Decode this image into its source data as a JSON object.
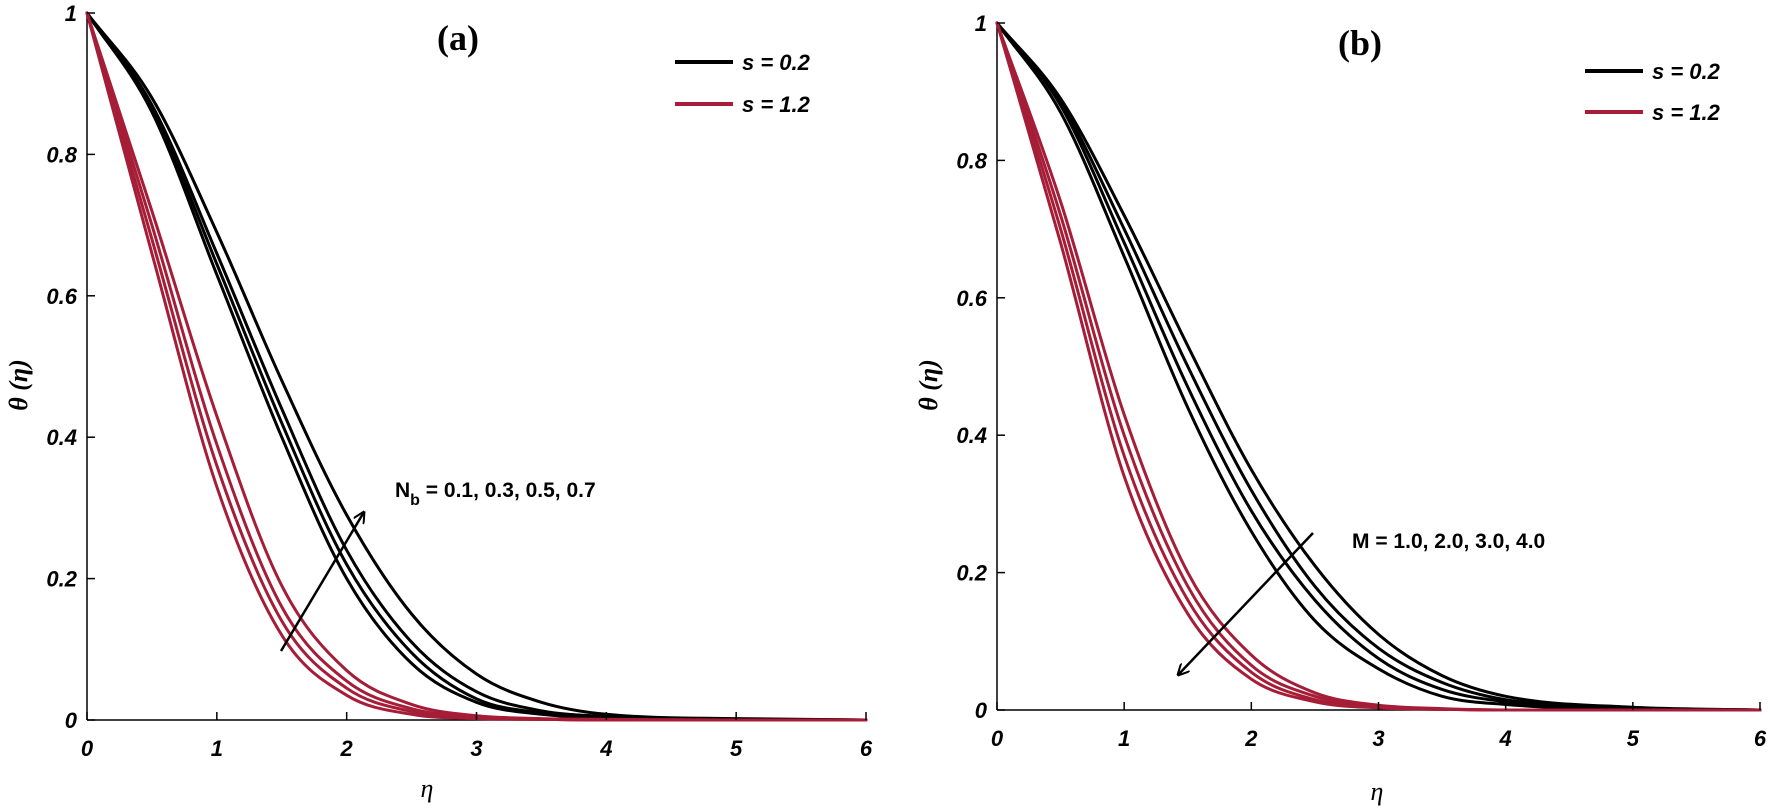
{
  "chart_data": [
    {
      "type": "line",
      "title": "(a)",
      "xlabel": "η",
      "ylabel": "θ (η)",
      "xlim": [
        0,
        6
      ],
      "ylim": [
        0,
        1
      ],
      "xticks": [
        "0",
        "1",
        "2",
        "3",
        "4",
        "5",
        "6"
      ],
      "yticks": [
        "0",
        "0.2",
        "0.4",
        "0.6",
        "0.8",
        "1"
      ],
      "legend_position": "top-right",
      "legend": [
        {
          "name": "s = 0.2",
          "color": "#000000"
        },
        {
          "name": "s = 1.2",
          "color": "#a51d37"
        }
      ],
      "annotation": {
        "text_main": "N",
        "text_sub": "b",
        "text_rest": " = 0.1, 0.3, 0.5, 0.7",
        "arrow_direction": "increasing"
      },
      "series": [
        {
          "legend": "s = 0.2",
          "color": "#000000",
          "x": [
            0,
            0.5,
            1,
            1.5,
            2,
            2.5,
            3,
            3.5,
            4,
            5,
            6
          ],
          "values": [
            1,
            0.86,
            0.63,
            0.4,
            0.2,
            0.08,
            0.025,
            0.008,
            0.003,
            0.001,
            0
          ]
        },
        {
          "legend": "s = 0.2",
          "color": "#000000",
          "x": [
            0,
            0.5,
            1,
            1.5,
            2,
            2.5,
            3,
            3.5,
            4,
            5,
            6
          ],
          "values": [
            1,
            0.865,
            0.645,
            0.42,
            0.22,
            0.095,
            0.03,
            0.01,
            0.004,
            0.001,
            0
          ]
        },
        {
          "legend": "s = 0.2",
          "color": "#000000",
          "x": [
            0,
            0.5,
            1,
            1.5,
            2,
            2.5,
            3,
            3.5,
            4,
            5,
            6
          ],
          "values": [
            1,
            0.87,
            0.66,
            0.44,
            0.24,
            0.11,
            0.04,
            0.013,
            0.005,
            0.001,
            0
          ]
        },
        {
          "legend": "s = 0.2",
          "color": "#000000",
          "x": [
            0,
            0.5,
            1,
            1.5,
            2,
            2.5,
            3,
            3.5,
            4,
            5,
            6
          ],
          "values": [
            1,
            0.88,
            0.69,
            0.48,
            0.29,
            0.15,
            0.065,
            0.025,
            0.008,
            0.002,
            0
          ]
        },
        {
          "legend": "s = 1.2",
          "color": "#a51d37",
          "x": [
            0,
            0.5,
            1,
            1.5,
            2,
            2.5,
            3,
            3.5,
            4,
            5,
            6
          ],
          "values": [
            1,
            0.66,
            0.33,
            0.12,
            0.035,
            0.008,
            0.002,
            0.001,
            0,
            0,
            0
          ]
        },
        {
          "legend": "s = 1.2",
          "color": "#a51d37",
          "x": [
            0,
            0.5,
            1,
            1.5,
            2,
            2.5,
            3,
            3.5,
            4,
            5,
            6
          ],
          "values": [
            1,
            0.68,
            0.36,
            0.14,
            0.045,
            0.012,
            0.003,
            0.001,
            0,
            0,
            0
          ]
        },
        {
          "legend": "s = 1.2",
          "color": "#a51d37",
          "x": [
            0,
            0.5,
            1,
            1.5,
            2,
            2.5,
            3,
            3.5,
            4,
            5,
            6
          ],
          "values": [
            1,
            0.7,
            0.39,
            0.16,
            0.055,
            0.016,
            0.004,
            0.001,
            0,
            0,
            0
          ]
        },
        {
          "legend": "s = 1.2",
          "color": "#a51d37",
          "x": [
            0,
            0.5,
            1,
            1.5,
            2,
            2.5,
            3,
            3.5,
            4,
            5,
            6
          ],
          "values": [
            1,
            0.72,
            0.43,
            0.19,
            0.07,
            0.022,
            0.006,
            0.002,
            0.001,
            0,
            0
          ]
        }
      ]
    },
    {
      "type": "line",
      "title": "(b)",
      "xlabel": "η",
      "ylabel": "θ (η)",
      "xlim": [
        0,
        6
      ],
      "ylim": [
        0,
        1
      ],
      "xticks": [
        "0",
        "1",
        "2",
        "3",
        "4",
        "5",
        "6"
      ],
      "yticks": [
        "0",
        "0.2",
        "0.4",
        "0.6",
        "0.8",
        "1"
      ],
      "legend_position": "top-right",
      "legend": [
        {
          "name": "s = 0.2",
          "color": "#000000"
        },
        {
          "name": "s = 1.2",
          "color": "#a51d37"
        }
      ],
      "annotation": {
        "text_main": "M = 1.0, 2.0, 3.0, 4.0",
        "text_sub": "",
        "text_rest": "",
        "arrow_direction": "decreasing"
      },
      "series": [
        {
          "legend": "s = 0.2",
          "color": "#000000",
          "x": [
            0,
            0.5,
            1,
            1.5,
            2,
            2.5,
            3,
            3.5,
            4,
            5,
            6
          ],
          "values": [
            1,
            0.89,
            0.72,
            0.53,
            0.35,
            0.21,
            0.11,
            0.05,
            0.02,
            0.004,
            0
          ]
        },
        {
          "legend": "s = 0.2",
          "color": "#000000",
          "x": [
            0,
            0.5,
            1,
            1.5,
            2,
            2.5,
            3,
            3.5,
            4,
            5,
            6
          ],
          "values": [
            1,
            0.885,
            0.7,
            0.5,
            0.32,
            0.18,
            0.09,
            0.04,
            0.015,
            0.003,
            0
          ]
        },
        {
          "legend": "s = 0.2",
          "color": "#000000",
          "x": [
            0,
            0.5,
            1,
            1.5,
            2,
            2.5,
            3,
            3.5,
            4,
            5,
            6
          ],
          "values": [
            1,
            0.88,
            0.68,
            0.47,
            0.29,
            0.16,
            0.075,
            0.03,
            0.012,
            0.002,
            0
          ]
        },
        {
          "legend": "s = 0.2",
          "color": "#000000",
          "x": [
            0,
            0.5,
            1,
            1.5,
            2,
            2.5,
            3,
            3.5,
            4,
            5,
            6
          ],
          "values": [
            1,
            0.87,
            0.66,
            0.44,
            0.26,
            0.13,
            0.06,
            0.02,
            0.008,
            0.001,
            0
          ]
        },
        {
          "legend": "s = 1.2",
          "color": "#a51d37",
          "x": [
            0,
            0.5,
            1,
            1.5,
            2,
            2.5,
            3,
            3.5,
            4,
            5,
            6
          ],
          "values": [
            1,
            0.74,
            0.43,
            0.2,
            0.08,
            0.025,
            0.007,
            0.002,
            0,
            0,
            0
          ]
        },
        {
          "legend": "s = 1.2",
          "color": "#a51d37",
          "x": [
            0,
            0.5,
            1,
            1.5,
            2,
            2.5,
            3,
            3.5,
            4,
            5,
            6
          ],
          "values": [
            1,
            0.72,
            0.4,
            0.18,
            0.065,
            0.02,
            0.005,
            0.001,
            0,
            0,
            0
          ]
        },
        {
          "legend": "s = 1.2",
          "color": "#a51d37",
          "x": [
            0,
            0.5,
            1,
            1.5,
            2,
            2.5,
            3,
            3.5,
            4,
            5,
            6
          ],
          "values": [
            1,
            0.7,
            0.37,
            0.16,
            0.055,
            0.015,
            0.004,
            0.001,
            0,
            0,
            0
          ]
        },
        {
          "legend": "s = 1.2",
          "color": "#a51d37",
          "x": [
            0,
            0.5,
            1,
            1.5,
            2,
            2.5,
            3,
            3.5,
            4,
            5,
            6
          ],
          "values": [
            1,
            0.68,
            0.34,
            0.14,
            0.045,
            0.012,
            0.003,
            0.001,
            0,
            0,
            0
          ]
        }
      ]
    }
  ]
}
